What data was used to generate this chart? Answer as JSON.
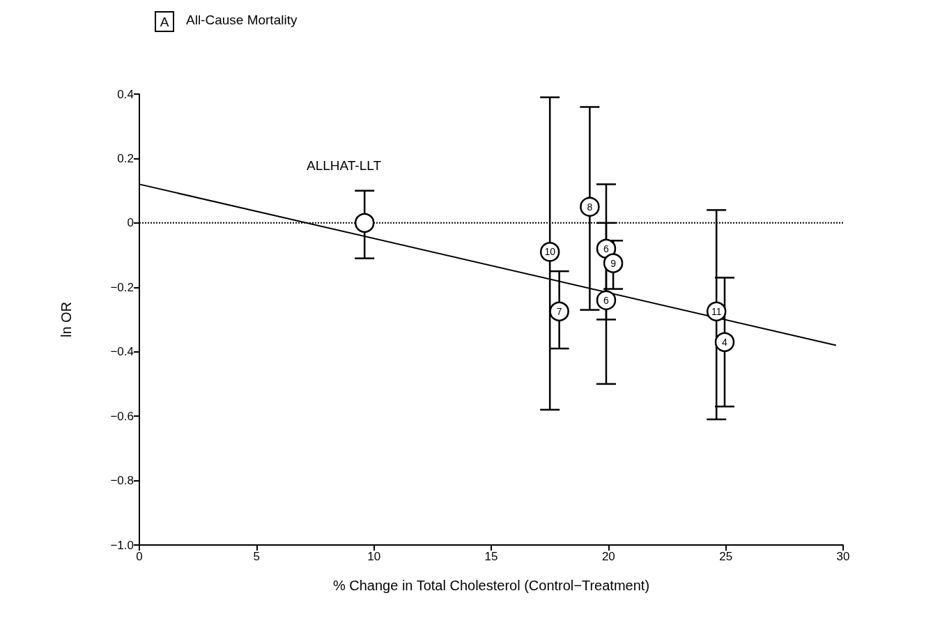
{
  "chart_data": {
    "type": "scatter",
    "title": "All-Cause Mortality",
    "xlabel": "% Change in Total Cholesterol (Control−Treatment)",
    "ylabel": "ln OR",
    "annotations": [
      "A",
      "ALLHAT-LLT",
      {
        "text": "10",
        "x": 17.5,
        "y": -0.09
      },
      {
        "text": "7",
        "x": 17.9,
        "y": -0.275
      },
      {
        "text": "8",
        "x": 19.2,
        "y": 0.05
      },
      {
        "text": "6",
        "x": 19.9,
        "y": -0.08
      },
      {
        "text": "6",
        "x": 19.9,
        "y": -0.24
      },
      {
        "text": "9",
        "x": 20.2,
        "y": -0.125
      },
      {
        "text": "11",
        "x": 24.6,
        "y": -0.275
      },
      {
        "text": "4",
        "x": 24.95,
        "y": -0.37
      }
    ],
    "series": [
      {
        "color": "#000000",
        "marker": "circle",
        "x": [
          9.6,
          17.5,
          17.9,
          19.2,
          19.9,
          19.9,
          20.2,
          24.6,
          24.95
        ],
        "values": [
          0,
          -0.09,
          -0.275,
          0.05,
          -0.08,
          -0.24,
          -0.125,
          -0.275,
          -0.37
        ],
        "errors": [
          [
            -0.11,
            0.1
          ],
          [
            -0.58,
            0.39
          ],
          [
            -0.39,
            -0.15
          ],
          [
            -0.27,
            0.36
          ],
          [
            -0.3,
            0.12
          ],
          [
            -0.5,
            0.0
          ],
          [
            -0.205,
            -0.055
          ],
          [
            -0.61,
            0.04
          ],
          [
            -0.57,
            -0.17
          ]
        ]
      },
      {
        "type": "line",
        "color": "#000000",
        "marker": "none",
        "x": [
          0,
          29.7
        ],
        "values": [
          0.12,
          -0.38
        ]
      }
    ],
    "ref_lines": [
      {
        "axis": "y",
        "value": 0,
        "line_style": "dotted",
        "color": "#000000"
      }
    ],
    "xlim": [
      0,
      30
    ],
    "xticks": [
      0,
      5,
      10,
      15,
      20,
      25,
      30
    ],
    "ylim": [
      -1.0,
      0.4
    ],
    "yticks": [
      {
        "value": -1.0,
        "label": "−1.0"
      },
      {
        "value": -0.8,
        "label": "−0.8"
      },
      {
        "value": -0.6,
        "label": "−0.6"
      },
      {
        "value": -0.4,
        "label": "−0.4"
      },
      {
        "value": -0.2,
        "label": "−0.2"
      },
      0,
      0.2,
      0.4
    ],
    "grid": false
  }
}
